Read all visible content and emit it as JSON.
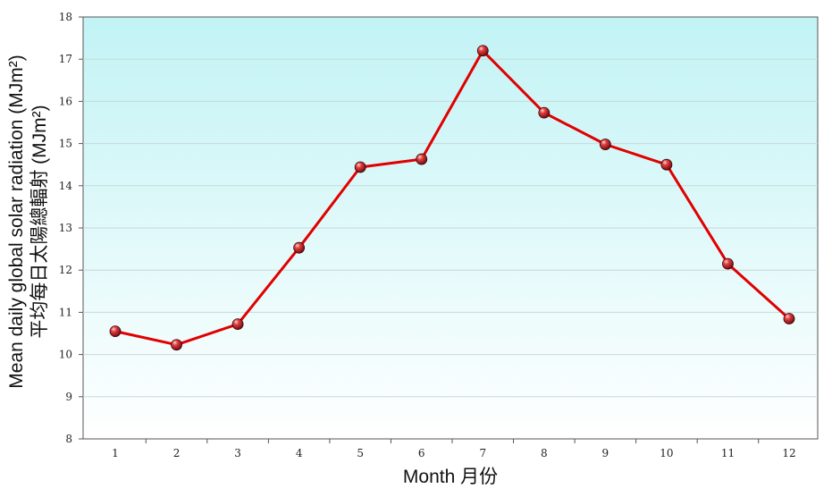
{
  "chart_data": {
    "type": "line",
    "title": "",
    "xlabel": "Month 月份",
    "ylabel": "Mean daily global solar radiation (MJm²)",
    "ylabel_zh": "平均每日太陽總輻射 (MJm²)",
    "categories": [
      "1",
      "2",
      "3",
      "4",
      "5",
      "6",
      "7",
      "8",
      "9",
      "10",
      "11",
      "12"
    ],
    "series": [
      {
        "values": [
          10.55,
          10.23,
          10.72,
          12.53,
          14.44,
          14.63,
          17.2,
          15.73,
          14.98,
          14.5,
          12.15,
          10.85
        ]
      }
    ],
    "ylim": [
      8,
      18
    ],
    "yticks": [
      "8",
      "9",
      "10",
      "11",
      "12",
      "13",
      "14",
      "15",
      "16",
      "17",
      "18"
    ],
    "grid": true,
    "line_color": "#e00000",
    "marker_color": "#c0202a",
    "background_gradient": [
      "#c2f3f5",
      "#ffffff"
    ]
  }
}
